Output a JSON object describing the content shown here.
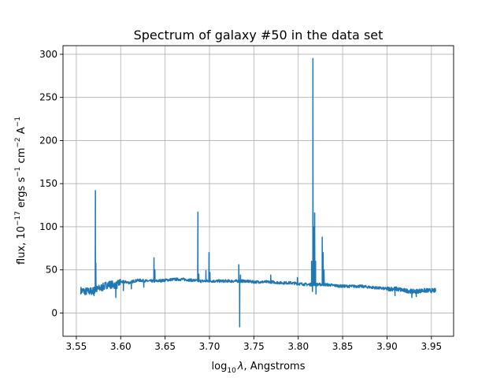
{
  "chart_data": {
    "type": "line",
    "title": "Spectrum of galaxy #50 in the data set",
    "xlabel": {
      "prefix": "log",
      "sub": "10",
      "symbol": "λ",
      "suffix": ", Angstroms"
    },
    "ylabel": {
      "parts": [
        "flux, 10",
        "−17",
        " ergs s",
        "−1",
        " cm",
        "−2",
        " A",
        "−1"
      ]
    },
    "xlim": [
      3.535,
      3.975
    ],
    "ylim": [
      -27,
      310
    ],
    "xticks": [
      3.55,
      3.6,
      3.65,
      3.7,
      3.75,
      3.8,
      3.85,
      3.9,
      3.95
    ],
    "xtick_labels": [
      "3.55",
      "3.60",
      "3.65",
      "3.70",
      "3.75",
      "3.80",
      "3.85",
      "3.90",
      "3.95"
    ],
    "yticks": [
      0,
      50,
      100,
      150,
      200,
      250,
      300
    ],
    "ytick_labels": [
      "0",
      "50",
      "100",
      "150",
      "200",
      "250",
      "300"
    ],
    "grid": true,
    "series": [
      {
        "color": "#1f77b4",
        "x_start": 3.555,
        "x_end": 3.955,
        "continuum": [
          [
            3.555,
            26
          ],
          [
            3.56,
            25
          ],
          [
            3.565,
            25
          ],
          [
            3.57,
            26
          ],
          [
            3.575,
            28
          ],
          [
            3.58,
            30
          ],
          [
            3.585,
            33
          ],
          [
            3.59,
            33
          ],
          [
            3.595,
            32
          ],
          [
            3.6,
            36
          ],
          [
            3.605,
            36
          ],
          [
            3.61,
            35
          ],
          [
            3.615,
            37
          ],
          [
            3.62,
            38
          ],
          [
            3.63,
            37
          ],
          [
            3.64,
            37
          ],
          [
            3.65,
            38
          ],
          [
            3.66,
            39
          ],
          [
            3.67,
            39
          ],
          [
            3.68,
            38
          ],
          [
            3.69,
            37
          ],
          [
            3.7,
            37
          ],
          [
            3.71,
            37
          ],
          [
            3.72,
            37
          ],
          [
            3.73,
            37
          ],
          [
            3.74,
            37
          ],
          [
            3.75,
            36
          ],
          [
            3.76,
            36
          ],
          [
            3.77,
            36
          ],
          [
            3.78,
            35
          ],
          [
            3.79,
            35
          ],
          [
            3.8,
            34
          ],
          [
            3.81,
            33
          ],
          [
            3.82,
            33
          ],
          [
            3.83,
            33
          ],
          [
            3.84,
            32
          ],
          [
            3.85,
            31
          ],
          [
            3.86,
            31
          ],
          [
            3.87,
            31
          ],
          [
            3.88,
            30
          ],
          [
            3.89,
            29
          ],
          [
            3.9,
            28
          ],
          [
            3.91,
            28
          ],
          [
            3.92,
            26
          ],
          [
            3.93,
            25
          ],
          [
            3.94,
            26
          ],
          [
            3.95,
            26
          ],
          [
            3.955,
            26
          ]
        ],
        "spikes": [
          [
            3.5715,
            142
          ],
          [
            3.572,
            58
          ],
          [
            3.6375,
            64
          ],
          [
            3.6385,
            50
          ],
          [
            3.687,
            117
          ],
          [
            3.688,
            45
          ],
          [
            3.696,
            49
          ],
          [
            3.6995,
            70
          ],
          [
            3.7005,
            47
          ],
          [
            3.733,
            56
          ],
          [
            3.734,
            -16
          ],
          [
            3.735,
            44
          ],
          [
            3.769,
            44
          ],
          [
            3.799,
            41
          ],
          [
            3.815,
            60
          ],
          [
            3.8165,
            295
          ],
          [
            3.8175,
            100
          ],
          [
            3.8185,
            116
          ],
          [
            3.8195,
            60
          ],
          [
            3.827,
            88
          ],
          [
            3.828,
            70
          ],
          [
            3.829,
            50
          ]
        ],
        "dips": [
          [
            3.57,
            20
          ],
          [
            3.5945,
            18
          ],
          [
            3.603,
            26
          ],
          [
            3.612,
            28
          ],
          [
            3.626,
            30
          ],
          [
            3.816,
            25
          ],
          [
            3.82,
            22
          ],
          [
            3.909,
            20
          ],
          [
            3.928,
            18
          ],
          [
            3.933,
            19
          ]
        ]
      }
    ]
  }
}
